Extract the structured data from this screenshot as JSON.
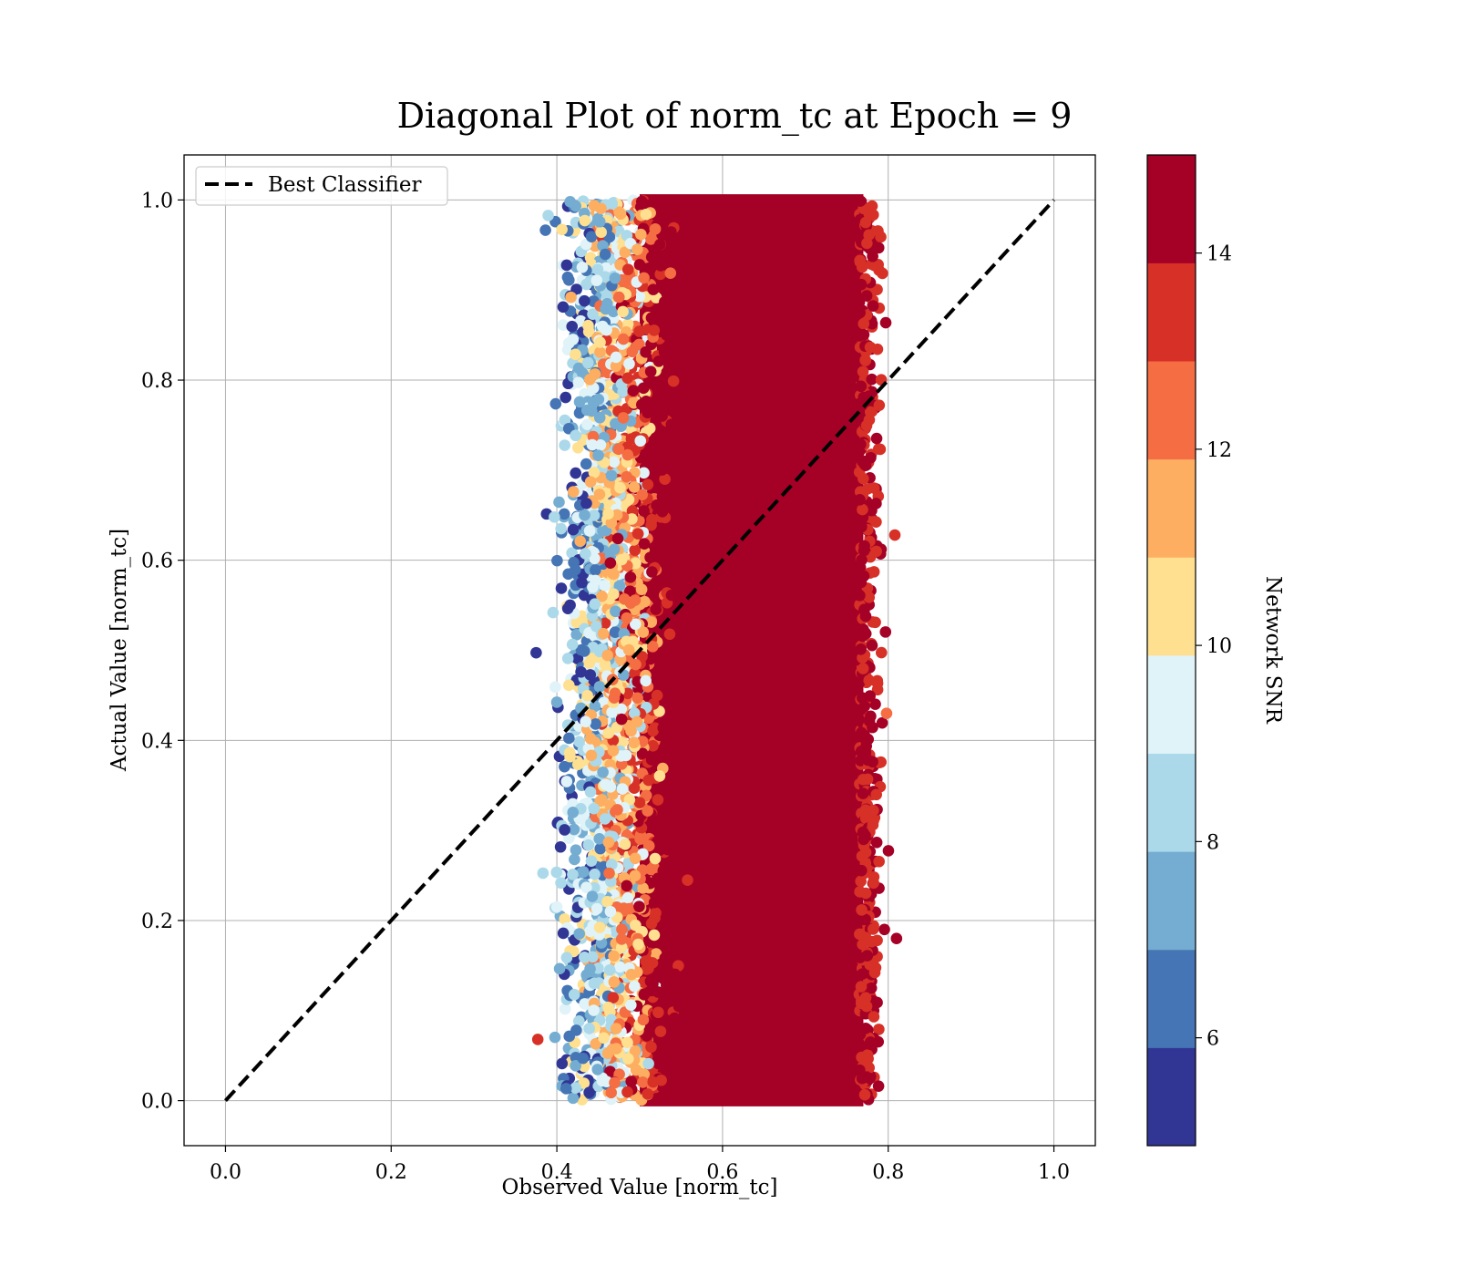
{
  "chart_data": {
    "type": "scatter",
    "title": "Diagonal Plot of norm_tc at Epoch = 9",
    "xlabel": "Observed Value [norm_tc]",
    "ylabel": "Actual Value [norm_tc]",
    "xlim": [
      -0.05,
      1.05
    ],
    "ylim": [
      -0.05,
      1.05
    ],
    "xticks": [
      "0.0",
      "0.2",
      "0.4",
      "0.6",
      "0.8",
      "1.0"
    ],
    "yticks": [
      "0.0",
      "0.2",
      "0.4",
      "0.6",
      "0.8",
      "1.0"
    ],
    "grid": true,
    "legend": {
      "placement": "top-left",
      "entries": [
        "Best Classifier"
      ]
    },
    "diagonal_line": {
      "name": "Best Classifier",
      "x": [
        0.0,
        1.0
      ],
      "y": [
        0.0,
        1.0
      ],
      "style": "dashed",
      "color": "#000000"
    },
    "scatter_extent": {
      "x_range": [
        0.38,
        0.81
      ],
      "y_range": [
        0.0,
        1.0
      ],
      "dense_x_range": [
        0.5,
        0.77
      ]
    },
    "colorbar": {
      "label": "Network SNR",
      "range": [
        4.9,
        15.0
      ],
      "ticks": [
        "6",
        "8",
        "10",
        "12",
        "14"
      ],
      "tick_values": [
        6,
        8,
        10,
        12,
        14
      ],
      "bounds": [
        4.9,
        5.9,
        6.9,
        7.9,
        8.9,
        9.9,
        10.9,
        11.9,
        12.9,
        13.9,
        15.0
      ],
      "colors": [
        "#313695",
        "#4575b4",
        "#74add1",
        "#abd9e9",
        "#e0f3f8",
        "#fee090",
        "#fdae61",
        "#f46d43",
        "#d73027",
        "#a50026"
      ]
    }
  }
}
